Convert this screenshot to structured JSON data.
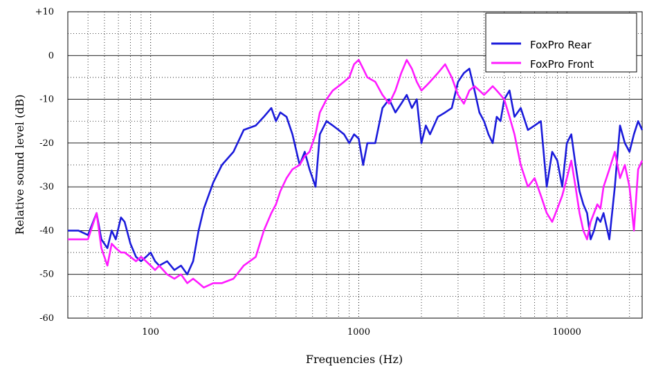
{
  "chart_data": {
    "type": "line",
    "title": "",
    "xlabel": "Frequencies (Hz)",
    "ylabel": "Relative sound level (dB)",
    "x_scale": "log",
    "xlim": [
      40,
      23000
    ],
    "ylim": [
      -60,
      10
    ],
    "x_ticks": [
      {
        "value": 100,
        "label": "100"
      },
      {
        "value": 1000,
        "label": "1000"
      },
      {
        "value": 10000,
        "label": "10000"
      }
    ],
    "y_ticks": [
      {
        "value": 10,
        "label": "+10"
      },
      {
        "value": 0,
        "label": "0"
      },
      {
        "value": -10,
        "label": "-10"
      },
      {
        "value": -20,
        "label": "-20"
      },
      {
        "value": -30,
        "label": "-30"
      },
      {
        "value": -40,
        "label": "-40"
      },
      {
        "value": -50,
        "label": "-50"
      },
      {
        "value": -60,
        "label": "-60"
      }
    ],
    "grid": true,
    "legend_position": "top-right",
    "series": [
      {
        "name": "FoxPro Rear",
        "color": "#1a1adb",
        "x": [
          40,
          45,
          50,
          55,
          58,
          62,
          65,
          68,
          72,
          75,
          80,
          85,
          90,
          95,
          100,
          105,
          110,
          120,
          130,
          140,
          150,
          160,
          170,
          180,
          200,
          220,
          250,
          280,
          320,
          350,
          380,
          400,
          420,
          450,
          480,
          520,
          550,
          580,
          600,
          620,
          650,
          700,
          750,
          800,
          850,
          900,
          950,
          1000,
          1050,
          1100,
          1200,
          1300,
          1400,
          1500,
          1600,
          1700,
          1800,
          1900,
          2000,
          2100,
          2200,
          2400,
          2600,
          2800,
          3000,
          3200,
          3400,
          3600,
          3800,
          4000,
          4200,
          4400,
          4600,
          4800,
          5000,
          5300,
          5600,
          6000,
          6500,
          7000,
          7500,
          8000,
          8500,
          9000,
          9500,
          10000,
          10500,
          11000,
          11500,
          12000,
          12500,
          13000,
          13500,
          14000,
          14500,
          15000,
          16000,
          17000,
          18000,
          19000,
          20000,
          21000,
          22000,
          23000
        ],
        "y": [
          -40,
          -40,
          -41,
          -36,
          -42,
          -44,
          -40,
          -42,
          -37,
          -38,
          -43,
          -46,
          -47,
          -46,
          -45,
          -47,
          -48,
          -47,
          -49,
          -48,
          -50,
          -47,
          -40,
          -35,
          -29,
          -25,
          -22,
          -17,
          -16,
          -14,
          -12,
          -15,
          -13,
          -14,
          -18,
          -25,
          -22,
          -26,
          -28,
          -30,
          -18,
          -15,
          -16,
          -17,
          -18,
          -20,
          -18,
          -19,
          -25,
          -20,
          -20,
          -12,
          -10,
          -13,
          -11,
          -9,
          -12,
          -10,
          -20,
          -16,
          -18,
          -14,
          -13,
          -12,
          -6,
          -4,
          -3,
          -8,
          -13,
          -15,
          -18,
          -20,
          -14,
          -15,
          -10,
          -8,
          -14,
          -12,
          -17,
          -16,
          -15,
          -30,
          -22,
          -24,
          -30,
          -20,
          -18,
          -25,
          -31,
          -34,
          -36,
          -42,
          -40,
          -37,
          -38,
          -36,
          -42,
          -30,
          -16,
          -20,
          -22,
          -18,
          -15,
          -17
        ]
      },
      {
        "name": "FoxPro Front",
        "color": "#ff1aff",
        "x": [
          40,
          45,
          50,
          55,
          58,
          62,
          65,
          68,
          72,
          75,
          80,
          85,
          90,
          95,
          100,
          105,
          110,
          120,
          130,
          140,
          150,
          160,
          170,
          180,
          200,
          220,
          250,
          280,
          320,
          350,
          380,
          400,
          420,
          450,
          480,
          520,
          550,
          580,
          600,
          620,
          650,
          700,
          750,
          800,
          850,
          900,
          950,
          1000,
          1050,
          1100,
          1200,
          1300,
          1400,
          1500,
          1600,
          1700,
          1800,
          1900,
          2000,
          2100,
          2200,
          2400,
          2600,
          2800,
          3000,
          3200,
          3400,
          3600,
          3800,
          4000,
          4200,
          4400,
          4600,
          4800,
          5000,
          5300,
          5600,
          6000,
          6500,
          7000,
          7500,
          8000,
          8500,
          9000,
          9500,
          10000,
          10500,
          11000,
          11500,
          12000,
          12500,
          13000,
          13500,
          14000,
          14500,
          15000,
          16000,
          17000,
          18000,
          19000,
          20000,
          21000,
          22000,
          23000
        ],
        "y": [
          -42,
          -42,
          -42,
          -36,
          -44,
          -48,
          -43,
          -44,
          -45,
          -45,
          -46,
          -47,
          -46,
          -47,
          -48,
          -49,
          -48,
          -50,
          -51,
          -50,
          -52,
          -51,
          -52,
          -53,
          -52,
          -52,
          -51,
          -48,
          -46,
          -40,
          -36,
          -34,
          -31,
          -28,
          -26,
          -25,
          -23,
          -22,
          -20,
          -18,
          -13,
          -10,
          -8,
          -7,
          -6,
          -5,
          -2,
          -1,
          -3,
          -5,
          -6,
          -9,
          -11,
          -8,
          -4,
          -1,
          -3,
          -6,
          -8,
          -7,
          -6,
          -4,
          -2,
          -5,
          -9,
          -11,
          -8,
          -7,
          -8,
          -9,
          -8,
          -7,
          -8,
          -9,
          -10,
          -14,
          -18,
          -25,
          -30,
          -28,
          -32,
          -36,
          -38,
          -35,
          -32,
          -28,
          -24,
          -30,
          -36,
          -40,
          -42,
          -38,
          -36,
          -34,
          -35,
          -30,
          -26,
          -22,
          -28,
          -25,
          -30,
          -40,
          -26,
          -24
        ]
      }
    ]
  }
}
